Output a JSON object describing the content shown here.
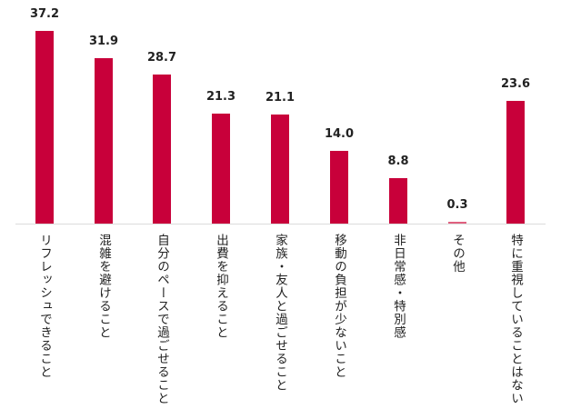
{
  "chart_data": {
    "type": "bar",
    "title": "",
    "xlabel": "",
    "ylabel": "",
    "unit": "%",
    "grid": false,
    "legend": null,
    "ylim": [
      0,
      40
    ],
    "bar_color": "#c8003a",
    "categories": [
      "リフレッシュできること",
      "混雑を避けること",
      "自分のペースで過ごせること",
      "出費を抑えること",
      "家族・友人と過ごせること",
      "移動の負担が少ないこと",
      "非日常感・特別感",
      "その他",
      "特に重視していることはない"
    ],
    "values": [
      37.2,
      31.9,
      28.7,
      21.3,
      21.1,
      14.0,
      8.8,
      0.3,
      23.6
    ],
    "value_labels": [
      "37.2",
      "31.9",
      "28.7",
      "21.3",
      "21.1",
      "14.0",
      "8.8",
      "0.3",
      "23.6"
    ]
  }
}
